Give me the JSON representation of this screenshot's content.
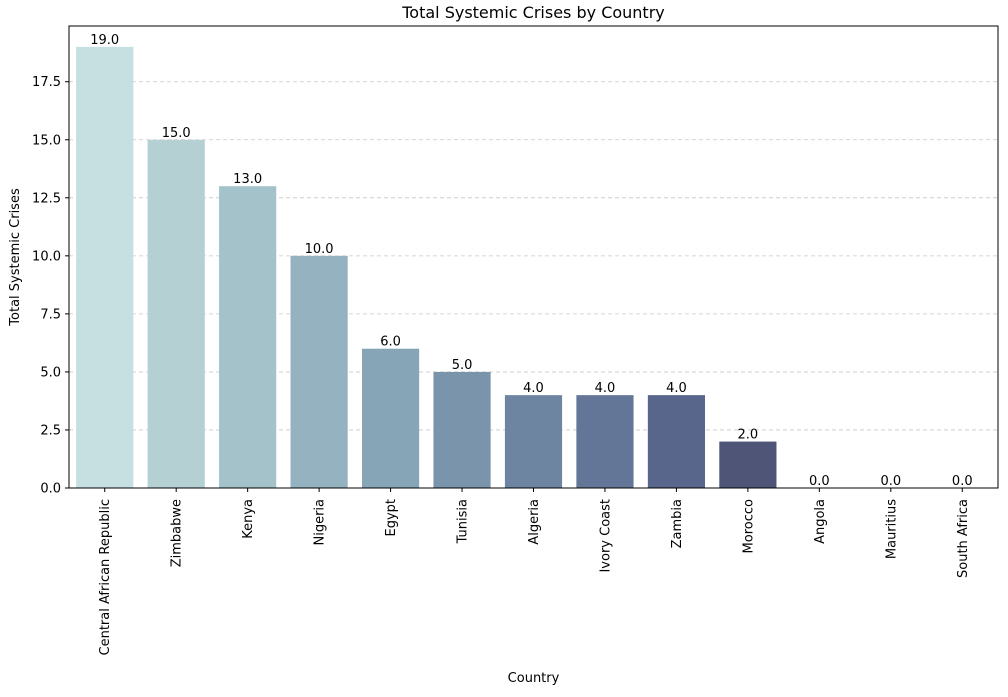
{
  "chart_data": {
    "type": "bar",
    "title": "Total Systemic Crises by Country",
    "xlabel": "Country",
    "ylabel": "Total Systemic Crises",
    "categories": [
      "Central African Republic",
      "Zimbabwe",
      "Kenya",
      "Nigeria",
      "Egypt",
      "Tunisia",
      "Algeria",
      "Ivory Coast",
      "Zambia",
      "Morocco",
      "Angola",
      "Mauritius",
      "South Africa"
    ],
    "values": [
      19.0,
      15.0,
      13.0,
      10.0,
      6.0,
      5.0,
      4.0,
      4.0,
      4.0,
      2.0,
      0.0,
      0.0,
      0.0
    ],
    "data_labels": [
      "19.0",
      "15.0",
      "13.0",
      "10.0",
      "6.0",
      "5.0",
      "4.0",
      "4.0",
      "4.0",
      "2.0",
      "0.0",
      "0.0",
      "0.0"
    ],
    "ylim": [
      0,
      19.9
    ],
    "yticks": [
      0.0,
      2.5,
      5.0,
      7.5,
      10.0,
      12.5,
      15.0,
      17.5
    ],
    "ytick_labels": [
      "0.0",
      "2.5",
      "5.0",
      "7.5",
      "10.0",
      "12.5",
      "15.0",
      "17.5"
    ],
    "grid": "y-dashed",
    "bar_colors": [
      "#c6dfe0",
      "#b4d0d3",
      "#a3c2c9",
      "#94b2bf",
      "#86a5b6",
      "#7a95ab",
      "#6e85a1",
      "#647698",
      "#58668b",
      "#4e5577",
      "#445066",
      "#3a4458",
      "#33394b"
    ]
  }
}
